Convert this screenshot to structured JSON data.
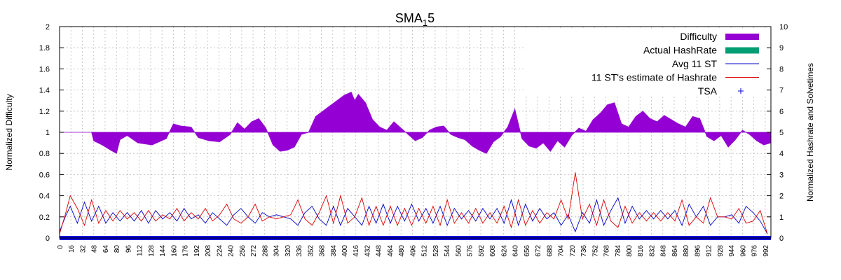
{
  "chart_data": {
    "type": "line",
    "title_main": "SMA",
    "title_sub": "1",
    "title_tail": "5",
    "ylabel_left": "Normalized Difficulty",
    "ylabel_right": "Normalized Hashrate and Solvetimes",
    "xlim": [
      0,
      1000
    ],
    "ylim_left": [
      0,
      2
    ],
    "ylim_right": [
      0,
      10
    ],
    "grid": true,
    "legend_position": "top-right",
    "left_ticks": [
      "0",
      "0.2",
      "0.4",
      "0.6",
      "0.8",
      "1",
      "1.2",
      "1.4",
      "1.6",
      "1.8",
      "2"
    ],
    "right_ticks": [
      "0",
      "1",
      "2",
      "3",
      "4",
      "5",
      "6",
      "7",
      "8",
      "9",
      "10"
    ],
    "x_ticks": [
      "0",
      "16",
      "32",
      "48",
      "64",
      "80",
      "96",
      "112",
      "128",
      "144",
      "160",
      "176",
      "192",
      "208",
      "224",
      "240",
      "256",
      "272",
      "288",
      "304",
      "320",
      "336",
      "352",
      "368",
      "384",
      "400",
      "416",
      "432",
      "448",
      "464",
      "480",
      "496",
      "512",
      "528",
      "544",
      "560",
      "576",
      "592",
      "608",
      "624",
      "640",
      "656",
      "672",
      "688",
      "704",
      "720",
      "736",
      "752",
      "768",
      "784",
      "800",
      "816",
      "832",
      "848",
      "864",
      "880",
      "896",
      "912",
      "928",
      "944",
      "960",
      "976",
      "992"
    ],
    "colors": {
      "difficulty": "#9400d3",
      "hashrate": "#009e73",
      "avg_st": "#0000cc",
      "estimate": "#dd0000",
      "tsa": "#0000dd"
    },
    "legend": [
      {
        "label": "Difficulty",
        "key": "difficulty",
        "style": "box"
      },
      {
        "label": "Actual HashRate",
        "key": "hashrate",
        "style": "box"
      },
      {
        "label": "Avg 11 ST",
        "key": "avg_st",
        "style": "line"
      },
      {
        "label": "11 ST's estimate of Hashrate",
        "key": "estimate",
        "style": "line"
      },
      {
        "label": "TSA",
        "key": "tsa",
        "style": "plus"
      }
    ],
    "series": [
      {
        "name": "Difficulty",
        "axis": "left",
        "x": [
          0,
          30,
          45,
          48,
          60,
          72,
          80,
          85,
          95,
          110,
          130,
          150,
          160,
          170,
          185,
          195,
          210,
          225,
          240,
          250,
          260,
          270,
          280,
          290,
          300,
          310,
          320,
          330,
          340,
          350,
          360,
          370,
          380,
          390,
          400,
          410,
          415,
          420,
          430,
          440,
          450,
          460,
          470,
          480,
          490,
          500,
          510,
          520,
          530,
          540,
          550,
          560,
          570,
          580,
          590,
          600,
          610,
          620,
          630,
          640,
          650,
          660,
          670,
          680,
          690,
          700,
          710,
          720,
          730,
          740,
          750,
          760,
          770,
          780,
          790,
          800,
          810,
          820,
          830,
          840,
          850,
          860,
          870,
          880,
          890,
          900,
          910,
          920,
          930,
          940,
          950,
          960,
          970,
          980,
          990,
          1000
        ],
        "y": [
          1.0,
          1.0,
          1.0,
          0.92,
          0.88,
          0.83,
          0.8,
          0.93,
          0.97,
          0.9,
          0.88,
          0.94,
          1.08,
          1.06,
          1.05,
          0.95,
          0.92,
          0.91,
          0.98,
          1.09,
          1.03,
          1.1,
          1.13,
          1.04,
          0.88,
          0.82,
          0.83,
          0.86,
          0.98,
          1.0,
          1.15,
          1.2,
          1.25,
          1.3,
          1.35,
          1.38,
          1.3,
          1.36,
          1.28,
          1.12,
          1.05,
          1.02,
          1.1,
          1.04,
          0.98,
          0.92,
          0.95,
          1.02,
          1.05,
          1.06,
          0.98,
          0.95,
          0.93,
          0.87,
          0.83,
          0.8,
          0.91,
          0.96,
          1.05,
          1.22,
          0.94,
          0.87,
          0.85,
          0.9,
          0.82,
          0.92,
          0.86,
          0.97,
          1.04,
          1.01,
          1.12,
          1.18,
          1.26,
          1.28,
          1.08,
          1.05,
          1.15,
          1.2,
          1.13,
          1.1,
          1.16,
          1.12,
          1.08,
          1.05,
          1.15,
          1.13,
          0.96,
          0.92,
          0.97,
          0.86,
          0.93,
          1.02,
          0.98,
          0.92,
          0.88,
          0.9
        ]
      },
      {
        "name": "Avg 11 ST",
        "axis": "right",
        "x": [
          0,
          8,
          15,
          25,
          35,
          45,
          55,
          65,
          75,
          85,
          95,
          105,
          115,
          125,
          135,
          145,
          155,
          165,
          175,
          185,
          195,
          205,
          215,
          225,
          235,
          245,
          255,
          265,
          275,
          285,
          295,
          305,
          315,
          325,
          335,
          345,
          355,
          365,
          375,
          385,
          395,
          405,
          415,
          425,
          435,
          445,
          455,
          465,
          475,
          485,
          495,
          505,
          515,
          525,
          535,
          545,
          555,
          565,
          575,
          585,
          595,
          605,
          615,
          625,
          635,
          645,
          655,
          665,
          675,
          685,
          695,
          705,
          715,
          725,
          735,
          745,
          755,
          765,
          775,
          785,
          795,
          805,
          815,
          825,
          835,
          845,
          855,
          865,
          875,
          885,
          895,
          905,
          915,
          925,
          935,
          945,
          955,
          965,
          975,
          985,
          995
        ],
        "y": [
          0.3,
          1.0,
          1.5,
          0.7,
          1.7,
          0.8,
          1.5,
          0.7,
          1.2,
          0.8,
          1.2,
          0.8,
          1.3,
          0.7,
          1.3,
          0.9,
          1.2,
          0.8,
          1.4,
          0.9,
          1.1,
          0.7,
          1.2,
          0.9,
          0.6,
          1.1,
          1.4,
          1.0,
          0.7,
          1.2,
          1.0,
          1.1,
          1.0,
          0.9,
          0.6,
          1.2,
          1.5,
          0.9,
          0.6,
          1.5,
          0.6,
          1.4,
          1.0,
          0.6,
          1.5,
          0.7,
          1.6,
          0.7,
          1.5,
          0.8,
          1.6,
          0.8,
          1.4,
          0.7,
          1.5,
          0.6,
          1.4,
          0.9,
          1.3,
          0.8,
          1.4,
          0.9,
          1.4,
          0.7,
          1.8,
          0.6,
          1.6,
          0.8,
          1.4,
          0.9,
          1.2,
          0.6,
          1.1,
          0.3,
          1.2,
          0.7,
          1.8,
          0.6,
          1.3,
          1.9,
          0.7,
          1.5,
          0.9,
          1.3,
          0.9,
          1.3,
          0.9,
          1.3,
          0.6,
          1.6,
          1.0,
          1.5,
          0.6,
          1.0,
          1.0,
          1.1,
          0.7,
          1.5,
          1.2,
          0.8,
          0.2
        ]
      },
      {
        "name": "11 ST's estimate of Hashrate",
        "axis": "right",
        "x": [
          0,
          8,
          15,
          25,
          35,
          45,
          55,
          65,
          75,
          85,
          95,
          105,
          115,
          125,
          135,
          145,
          155,
          165,
          175,
          185,
          195,
          205,
          215,
          225,
          235,
          245,
          255,
          265,
          275,
          285,
          295,
          305,
          315,
          325,
          335,
          345,
          355,
          365,
          375,
          385,
          395,
          405,
          415,
          425,
          435,
          445,
          455,
          465,
          475,
          485,
          495,
          505,
          515,
          525,
          535,
          545,
          555,
          565,
          575,
          585,
          595,
          605,
          615,
          625,
          635,
          645,
          655,
          665,
          675,
          685,
          695,
          705,
          715,
          725,
          735,
          745,
          755,
          765,
          775,
          785,
          795,
          805,
          815,
          825,
          835,
          845,
          855,
          865,
          875,
          885,
          895,
          905,
          915,
          925,
          935,
          945,
          955,
          965,
          975,
          985,
          995
        ],
        "y": [
          0.2,
          1.1,
          2.0,
          1.4,
          0.6,
          1.8,
          0.7,
          1.3,
          0.8,
          1.3,
          0.9,
          1.2,
          0.8,
          1.3,
          0.8,
          1.1,
          0.9,
          1.4,
          0.8,
          1.2,
          0.9,
          1.4,
          0.8,
          1.1,
          1.6,
          0.9,
          0.7,
          1.0,
          1.6,
          0.8,
          1.0,
          0.9,
          1.0,
          1.1,
          1.8,
          0.9,
          0.6,
          1.2,
          2.0,
          0.7,
          2.0,
          0.7,
          1.0,
          1.9,
          0.6,
          1.5,
          0.6,
          1.5,
          0.6,
          1.4,
          0.6,
          1.4,
          0.7,
          1.5,
          0.6,
          1.8,
          0.7,
          1.2,
          0.7,
          1.4,
          0.7,
          1.2,
          0.7,
          1.5,
          0.5,
          1.8,
          0.6,
          1.3,
          0.7,
          1.2,
          0.9,
          1.8,
          0.9,
          3.1,
          0.9,
          1.6,
          0.6,
          1.8,
          0.8,
          0.5,
          1.5,
          0.7,
          1.2,
          0.8,
          1.2,
          0.8,
          1.2,
          0.8,
          1.8,
          0.6,
          1.0,
          0.7,
          1.9,
          1.0,
          1.0,
          0.9,
          1.4,
          0.7,
          0.8,
          1.3,
          0.2
        ]
      },
      {
        "name": "TSA",
        "axis": "right",
        "x": [
          0,
          1000
        ],
        "y": [
          0,
          0
        ]
      }
    ]
  }
}
